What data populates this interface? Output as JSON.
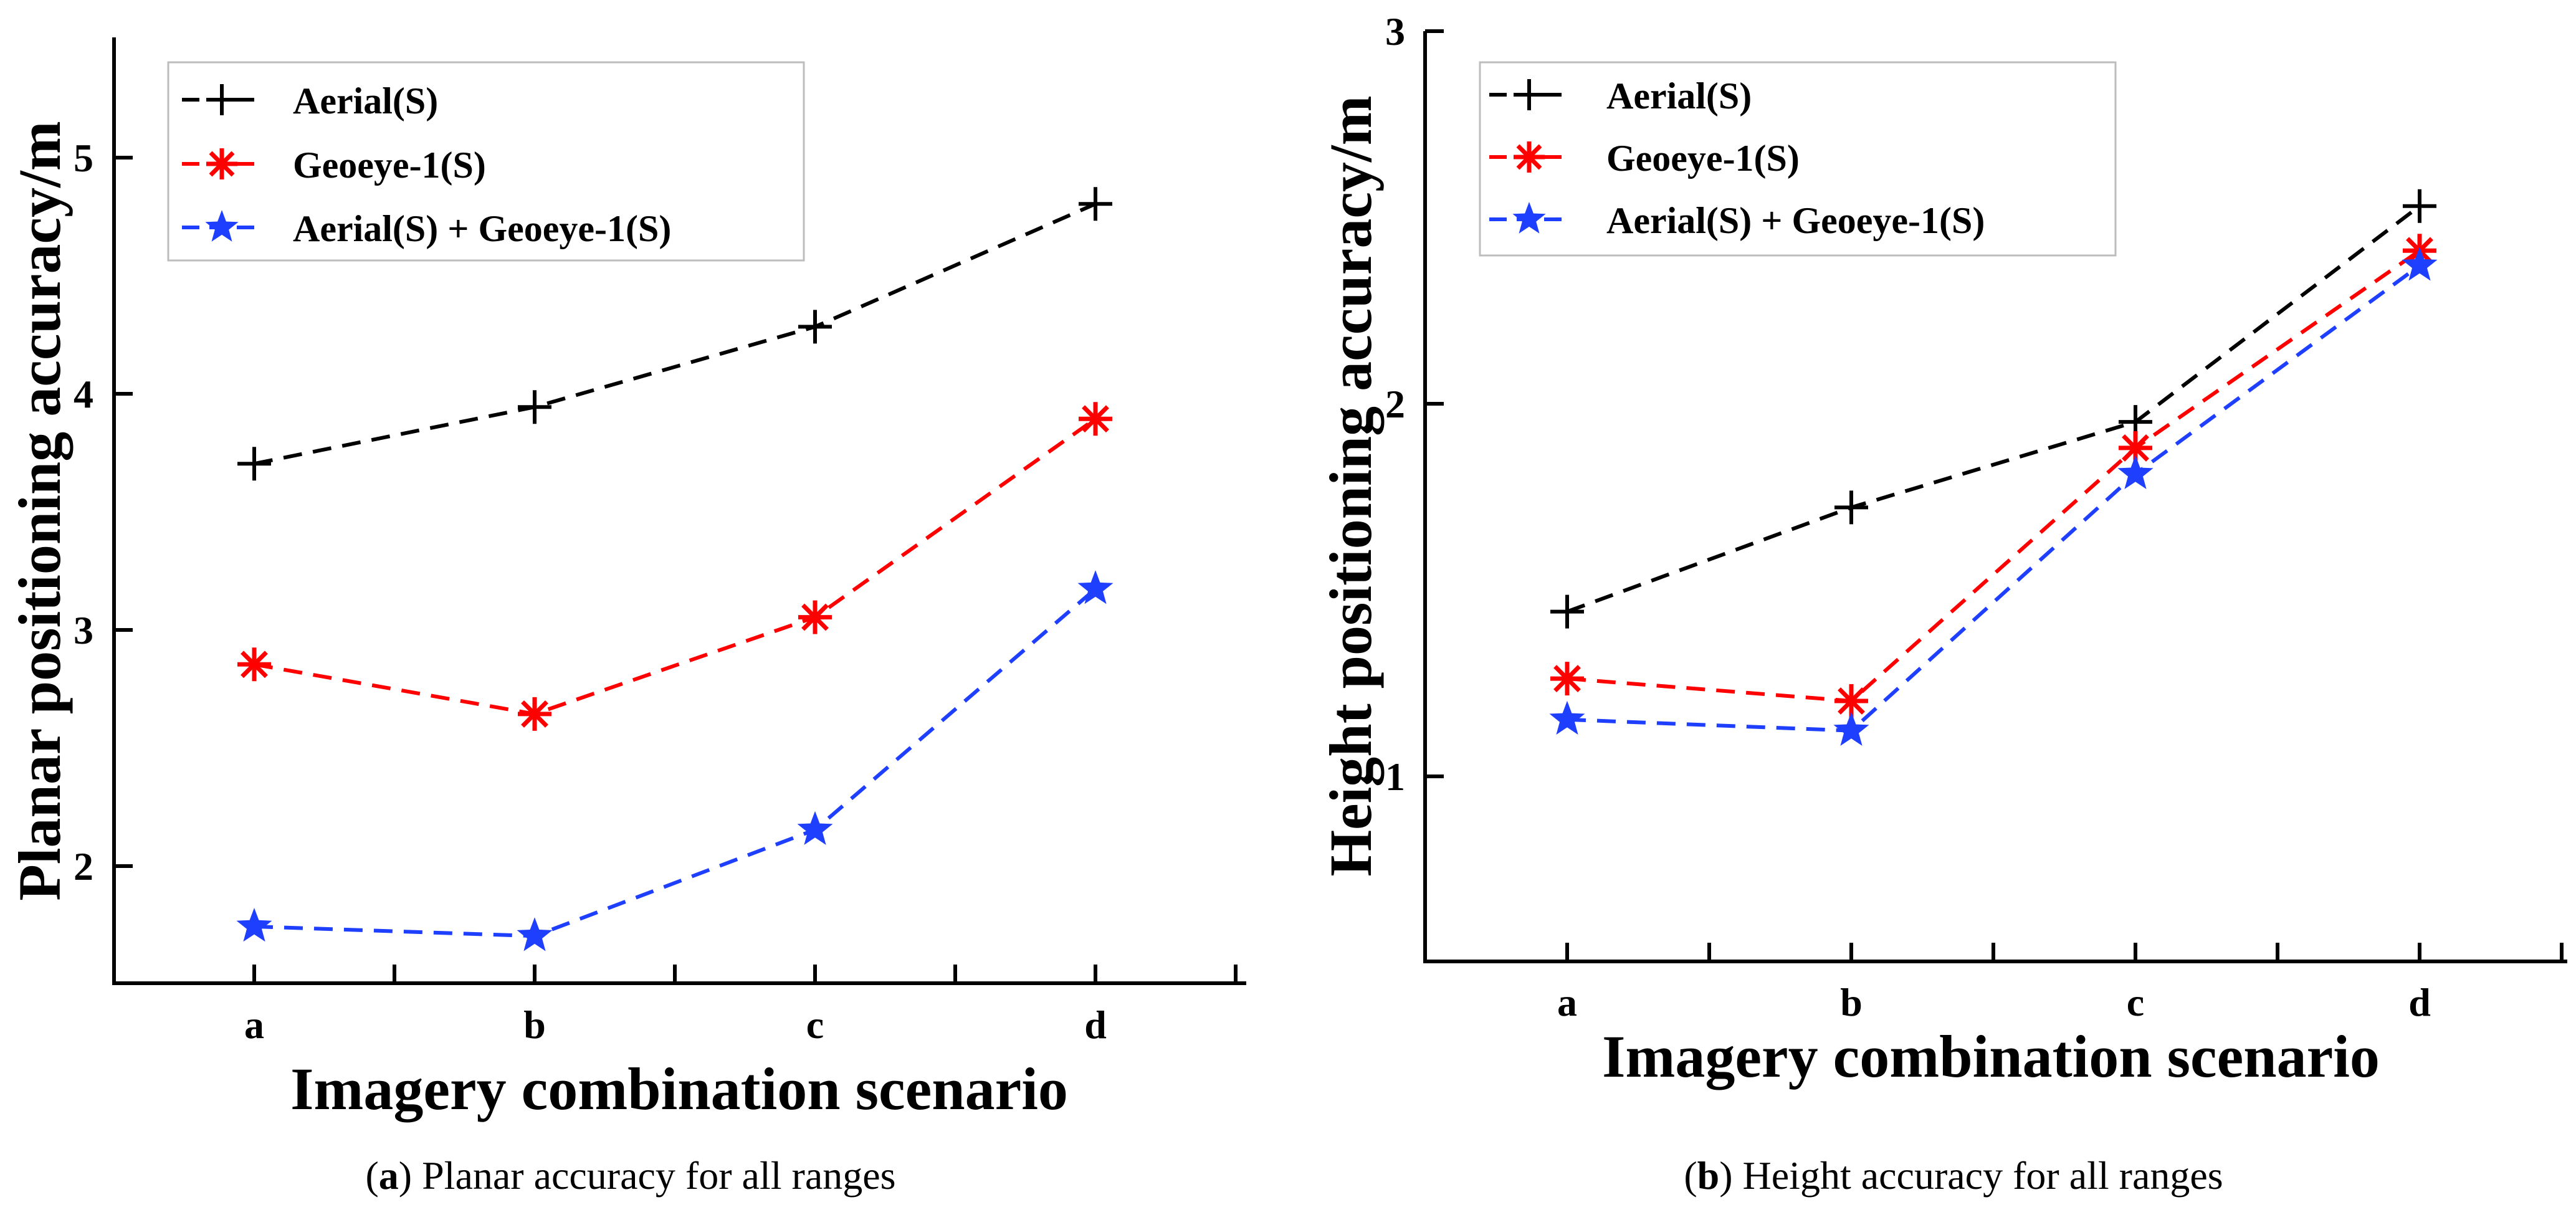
{
  "chart_data": [
    {
      "type": "line",
      "categories": [
        "a",
        "b",
        "c",
        "d"
      ],
      "series": [
        {
          "name": "Aerial(S)",
          "color": "#000000",
          "marker": "plus",
          "values": [
            3.7,
            3.94,
            4.28,
            4.8
          ]
        },
        {
          "name": "Geoeye-1(S)",
          "color": "#ff0000",
          "marker": "asterisk",
          "values": [
            2.85,
            2.64,
            3.05,
            3.89
          ]
        },
        {
          "name": "Aerial(S) + Geoeye-1(S)",
          "color": "#1f3fff",
          "marker": "star",
          "values": [
            1.74,
            1.7,
            2.15,
            3.17
          ]
        }
      ],
      "title": "",
      "xlabel": "Imagery combination scenario",
      "ylabel": "Planar positioning accuracy/m",
      "ylim": [
        1.5,
        5.5
      ],
      "yticks": [
        "2",
        "3",
        "4",
        "5"
      ],
      "legend": "top-left",
      "grid": false,
      "caption": {
        "letter": "a",
        "text": " Planar accuracy for all ranges"
      }
    },
    {
      "type": "line",
      "categories": [
        "a",
        "b",
        "c",
        "d"
      ],
      "series": [
        {
          "name": "Aerial(S)",
          "color": "#000000",
          "marker": "plus",
          "values": [
            1.44,
            1.72,
            1.95,
            2.53
          ]
        },
        {
          "name": "Geoeye-1(S)",
          "color": "#ff0000",
          "marker": "asterisk",
          "values": [
            1.26,
            1.2,
            1.88,
            2.41
          ]
        },
        {
          "name": "Aerial(S) + Geoeye-1(S)",
          "color": "#1f3fff",
          "marker": "star",
          "values": [
            1.15,
            1.12,
            1.81,
            2.37
          ]
        }
      ],
      "title": "",
      "xlabel": "Imagery combination scenario",
      "ylabel": "Height positioning accuracy/m",
      "ylim": [
        0.5,
        3.0
      ],
      "yticks": [
        "1",
        "2",
        "3"
      ],
      "legend": "top-left",
      "grid": false,
      "caption": {
        "letter": "b",
        "text": " Height accuracy for all ranges"
      }
    }
  ]
}
